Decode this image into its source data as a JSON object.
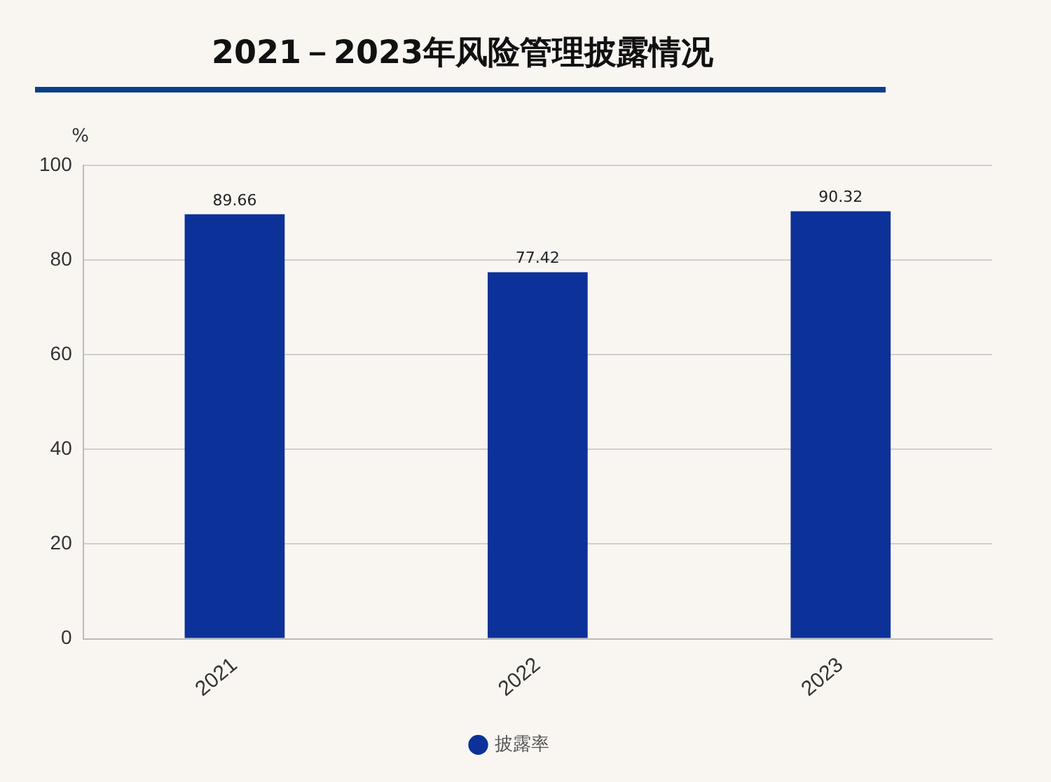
{
  "chart_data": {
    "type": "bar",
    "title": "2021－2023年风险管理披露情况",
    "ylabel": "%",
    "categories": [
      "2021",
      "2022",
      "2023"
    ],
    "series": [
      {
        "name": "披露率",
        "color": "#0c3199",
        "values": [
          89.66,
          77.42,
          90.32
        ]
      }
    ],
    "ylim": [
      0,
      100
    ],
    "yticks": [
      0,
      20,
      40,
      60,
      80,
      100
    ],
    "grid": "y",
    "legend": "bottom",
    "data_labels": true
  }
}
